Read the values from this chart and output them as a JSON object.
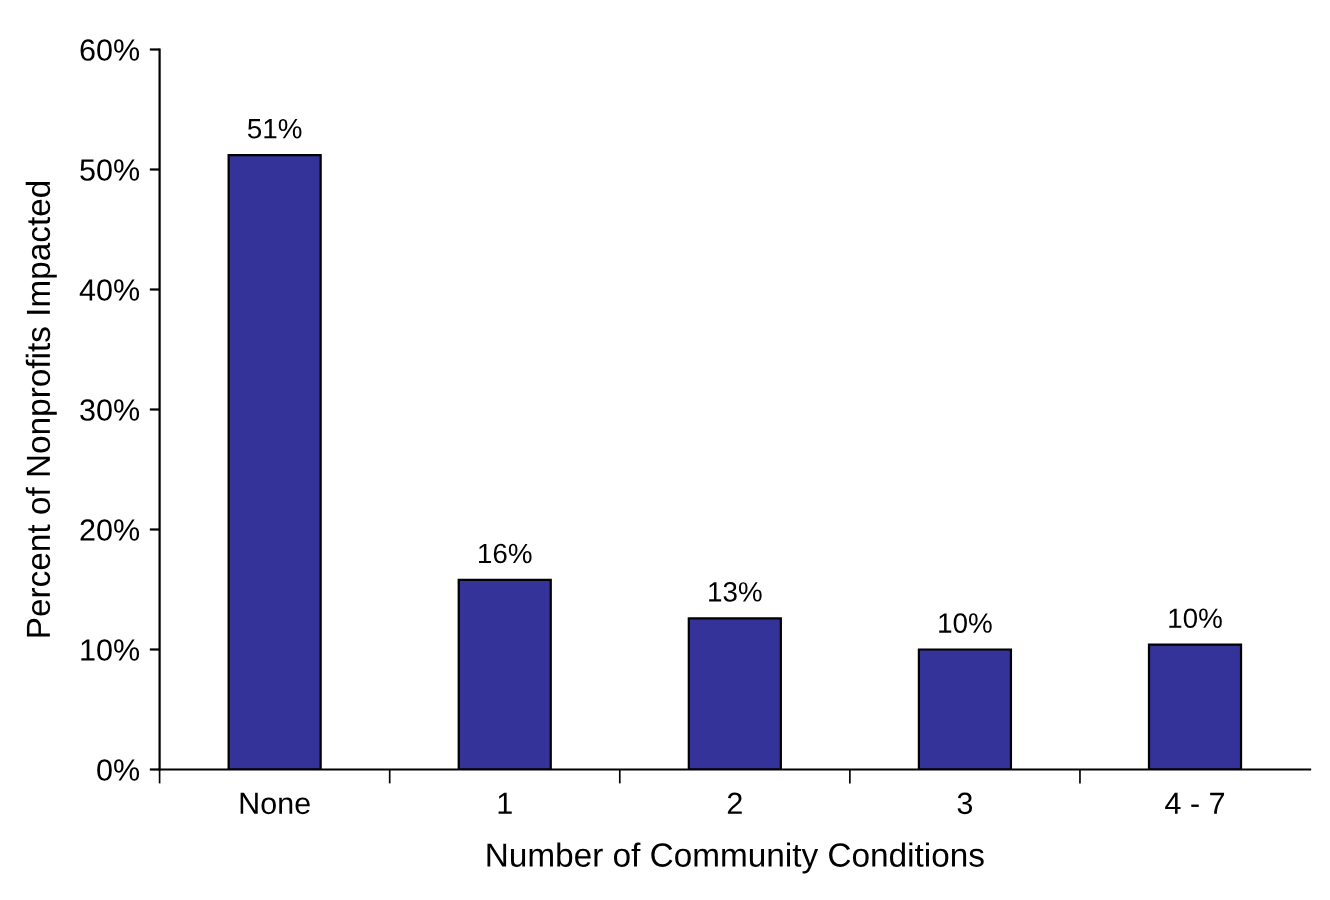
{
  "chart_data": {
    "type": "bar",
    "xlabel": "Number of Community Conditions",
    "ylabel": "Percent of Nonprofits Impacted",
    "categories": [
      "None",
      "1",
      "2",
      "3",
      "4 - 7"
    ],
    "values": [
      51.2,
      15.8,
      12.6,
      10.0,
      10.4
    ],
    "value_labels": [
      "51%",
      "16%",
      "13%",
      "10%",
      "10%"
    ],
    "color": "#333399",
    "ylim": [
      0,
      60
    ],
    "yticks": [
      {
        "value": 0,
        "label": "0%"
      },
      {
        "value": 10,
        "label": "10%"
      },
      {
        "value": 20,
        "label": "20%"
      },
      {
        "value": 30,
        "label": "30%"
      },
      {
        "value": 40,
        "label": "40%"
      },
      {
        "value": 50,
        "label": "50%"
      },
      {
        "value": 60,
        "label": "60%"
      }
    ],
    "grid": false,
    "legend": false
  }
}
